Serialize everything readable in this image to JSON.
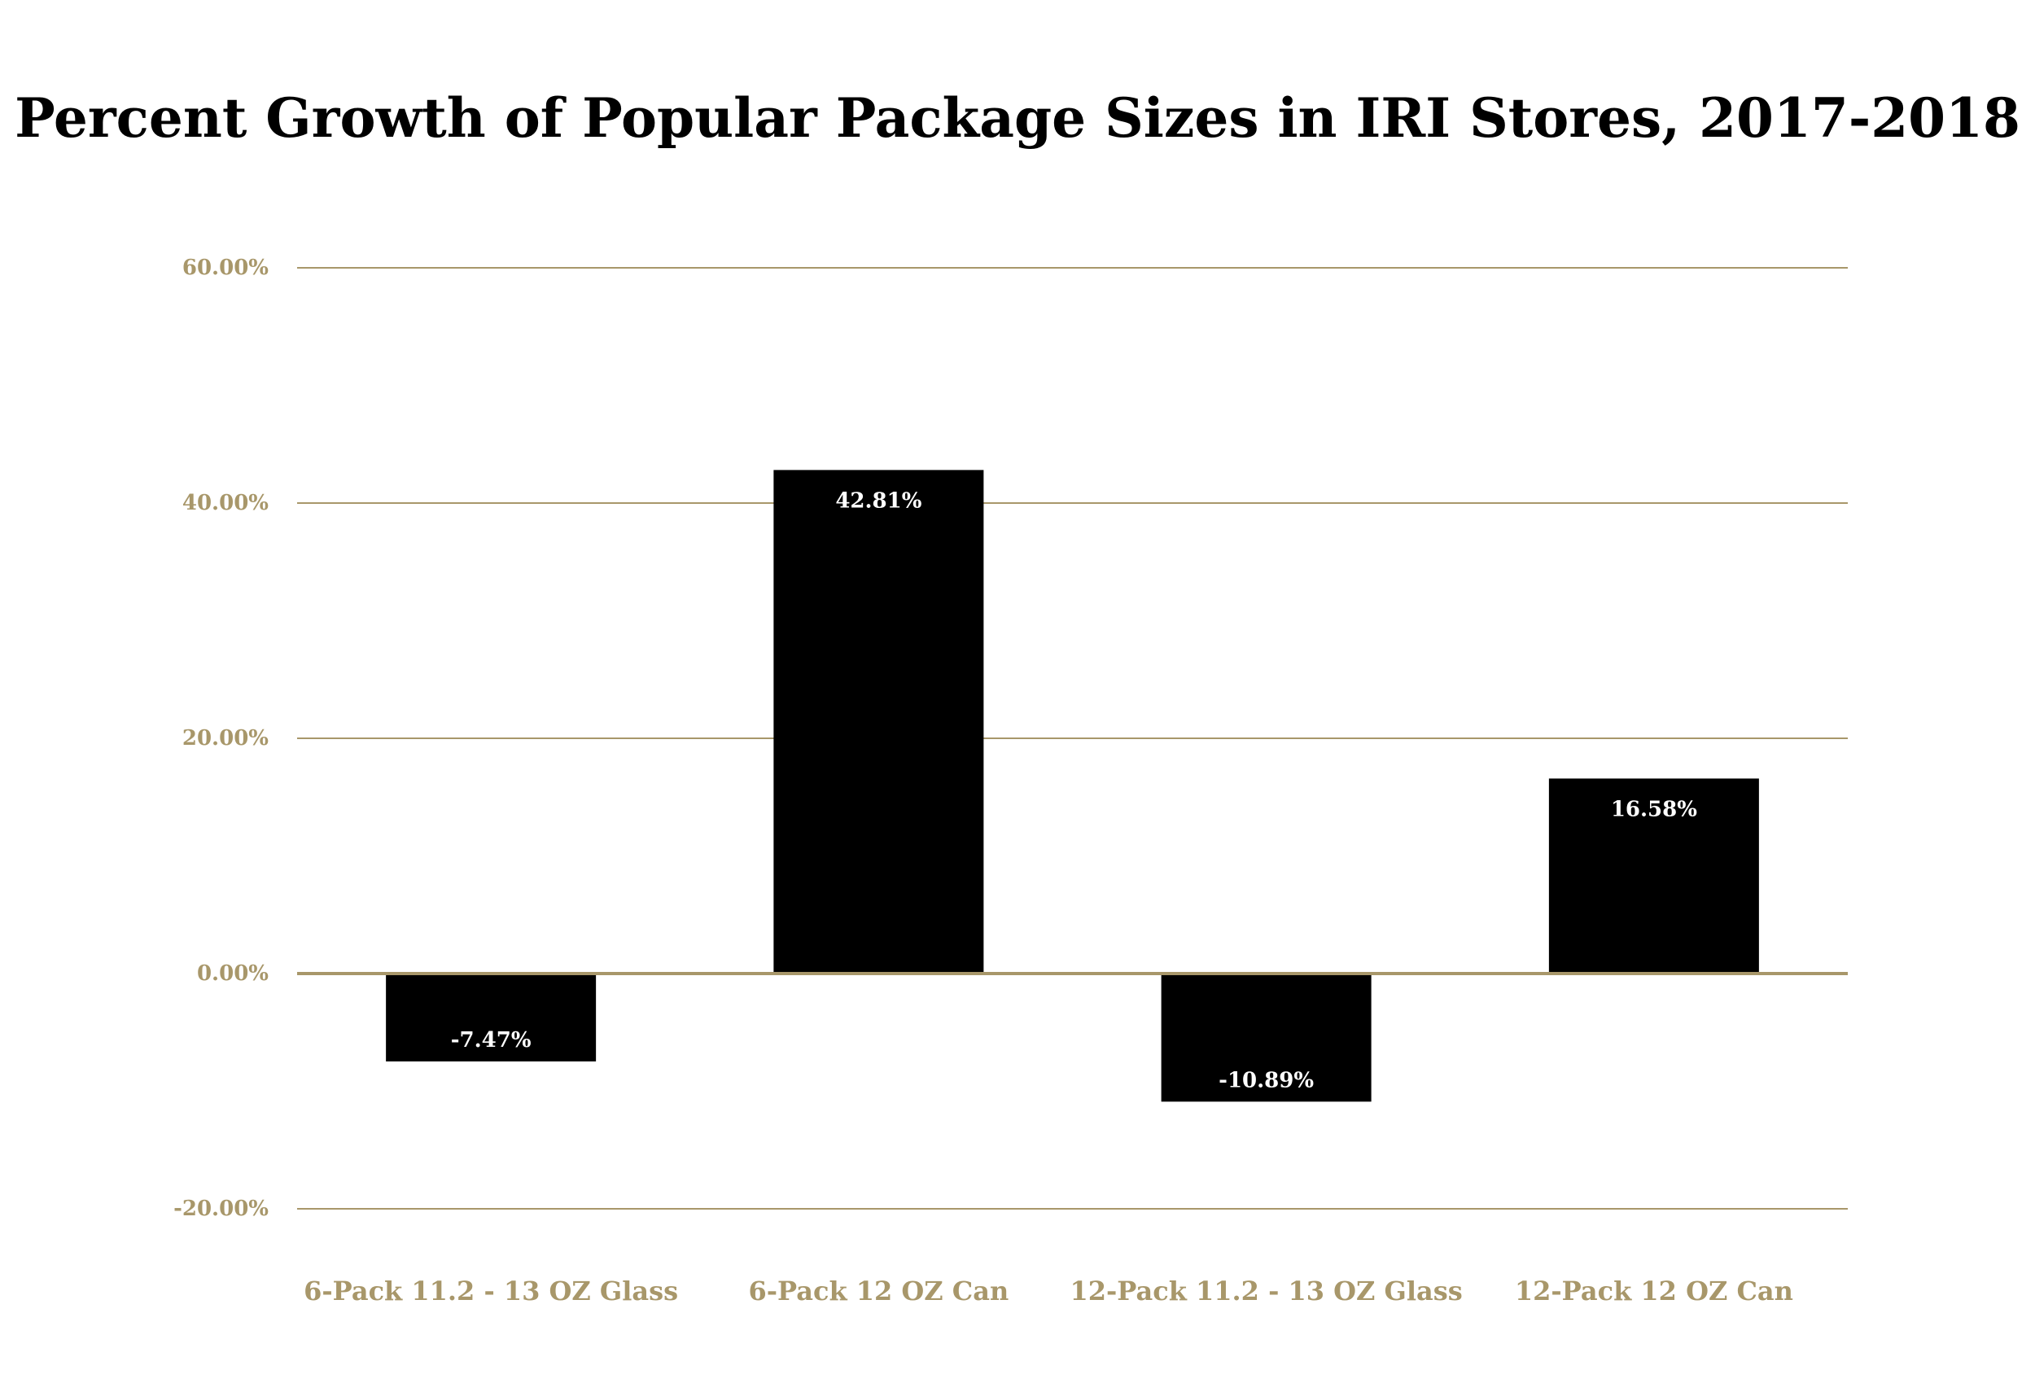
{
  "chart_data": {
    "type": "bar",
    "title": "Percent Growth of Popular Package Sizes in IRI Stores, 2017-2018",
    "categories": [
      "6-Pack 11.2 - 13 OZ Glass",
      "6-Pack 12 OZ Can",
      "12-Pack 11.2 - 13 OZ Glass",
      "12-Pack 12 OZ Can"
    ],
    "values": [
      -7.47,
      42.81,
      -10.89,
      16.58
    ],
    "data_labels": [
      "-7.47%",
      "42.81%",
      "-10.89%",
      "16.58%"
    ],
    "ylim": [
      -20,
      60
    ],
    "yticks": [
      60,
      40,
      20,
      0,
      -20
    ],
    "ytick_labels": [
      "60.00%",
      "40.00%",
      "20.00%",
      "0.00%",
      "-20.00%"
    ],
    "xlabel": "",
    "ylabel": "",
    "grid": true,
    "legend": false,
    "colors": {
      "bar": "#000000",
      "grid": "#a8976a",
      "axis_text": "#a8976a",
      "data_label": "#ffffff",
      "title": "#000000"
    }
  }
}
